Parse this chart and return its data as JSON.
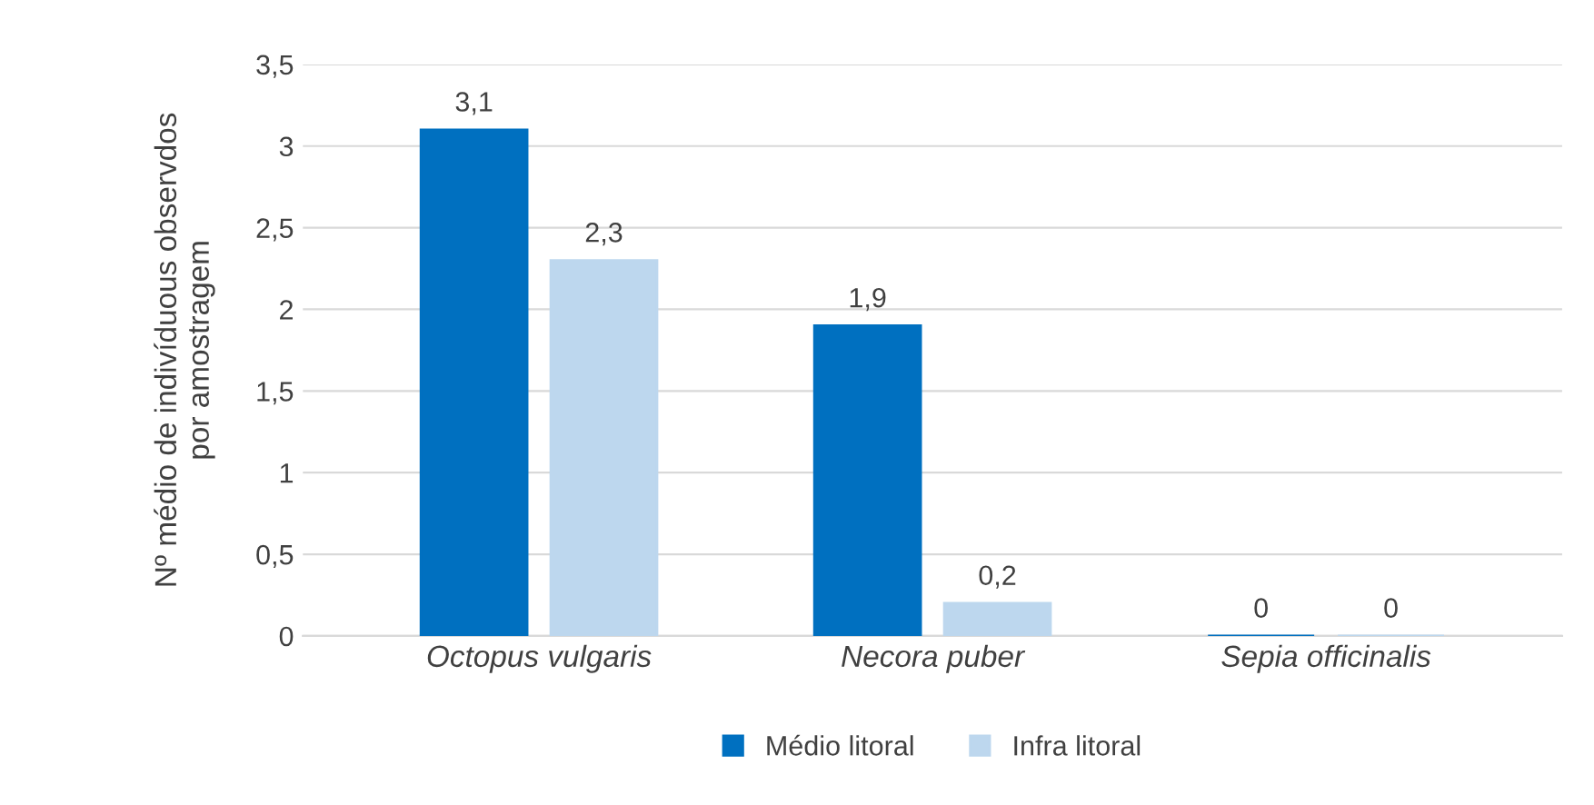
{
  "chart_data": {
    "type": "bar",
    "ylabel": "Nº médio de indivíduous observdos\npor amostragem",
    "categories": [
      "Octopus vulgaris",
      "Necora puber",
      "Sepia officinalis"
    ],
    "series": [
      {
        "name": "Médio litoral",
        "color": "#0070c0",
        "values": [
          3.1,
          1.9,
          0
        ],
        "value_labels": [
          "3,1",
          "1,9",
          "0"
        ]
      },
      {
        "name": "Infra litoral",
        "color": "#bdd7ee",
        "values": [
          2.3,
          0.2,
          0
        ],
        "value_labels": [
          "2,3",
          "0,2",
          "0"
        ]
      }
    ],
    "ylim": [
      0,
      3.5
    ],
    "yticks": [
      0,
      {
        "value": 0.5,
        "label": "0,5"
      },
      1,
      {
        "value": 1.5,
        "label": "1,5"
      },
      2,
      {
        "value": 2.5,
        "label": "2,5"
      },
      3,
      {
        "value": 3.5,
        "label": "3,5"
      }
    ],
    "grid": "y",
    "legend": "bottom"
  }
}
